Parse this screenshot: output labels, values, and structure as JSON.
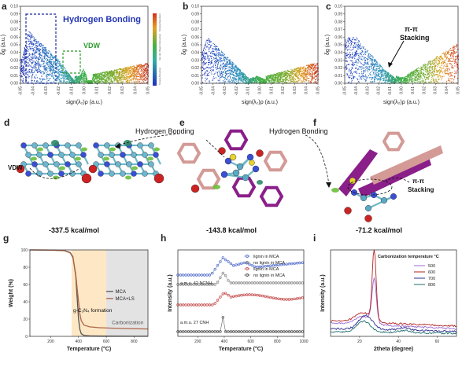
{
  "chart_data": [
    {
      "panel": "a",
      "type": "scatter",
      "ylabel": "δg (a.u.)",
      "xlabel": "sign(λ₂)ρ (a.u.)",
      "xlim": [
        -0.05,
        0.05
      ],
      "ylim": [
        0,
        0.1
      ],
      "xticks": [
        "-0.05",
        "-0.04",
        "-0.03",
        "-0.02",
        "-0.01",
        "0.00",
        "0.01",
        "0.02",
        "0.03",
        "0.04",
        "0.05"
      ],
      "yticks": [
        "0.00",
        "0.01",
        "0.02",
        "0.03",
        "0.04",
        "0.05",
        "0.06",
        "0.07",
        "0.08",
        "0.09",
        "0.10"
      ],
      "annotations": [
        "Hydrogen Bonding",
        "VDW"
      ],
      "colorbar_labels": [
        "Strong Attraction",
        "Van der Waals Interaction",
        "Strong Repulsion"
      ]
    },
    {
      "panel": "b",
      "type": "scatter",
      "ylabel": "δg (a.u.)",
      "xlabel": "sign(λ₂)ρ (a.u.)",
      "xlim": [
        -0.05,
        0.05
      ],
      "ylim": [
        0,
        0.1
      ],
      "xticks": [
        "-0.05",
        "-0.04",
        "-0.03",
        "-0.02",
        "-0.01",
        "0.00",
        "0.01",
        "0.02",
        "0.03",
        "0.04",
        "0.05"
      ],
      "yticks": [
        "0.00",
        "0.01",
        "0.02",
        "0.03",
        "0.04",
        "0.05",
        "0.06",
        "0.07",
        "0.08",
        "0.09",
        "0.10"
      ]
    },
    {
      "panel": "c",
      "type": "scatter",
      "ylabel": "δg (a.u.)",
      "xlabel": "sign(λ₂)ρ (a.u.)",
      "xlim": [
        -0.05,
        0.05
      ],
      "ylim": [
        0,
        0.1
      ],
      "xticks": [
        "-0.05",
        "-0.04",
        "-0.03",
        "-0.02",
        "-0.01",
        "0.00",
        "0.01",
        "0.02",
        "0.03",
        "0.04",
        "0.05"
      ],
      "yticks": [
        "0.00",
        "0.01",
        "0.02",
        "0.03",
        "0.04",
        "0.05",
        "0.06",
        "0.07",
        "0.08",
        "0.09",
        "0.10"
      ],
      "annotations": [
        "π-π",
        "Stacking"
      ]
    },
    {
      "panel": "g",
      "type": "line",
      "xlabel": "Temperature (°C)",
      "ylabel": "Weight (%)",
      "xlim": [
        50,
        900
      ],
      "ylim": [
        0,
        100
      ],
      "xticks": [
        "200",
        "400",
        "600",
        "800"
      ],
      "yticks": [
        "0",
        "20",
        "40",
        "60",
        "80",
        "100"
      ],
      "series": [
        {
          "name": "MCA",
          "color": "#555555",
          "x": [
            50,
            200,
            300,
            340,
            360,
            380,
            390,
            400,
            410,
            420,
            440,
            480,
            550,
            650,
            750,
            900
          ],
          "y": [
            100,
            99.8,
            99.2,
            97,
            92,
            70,
            45,
            20,
            8,
            3,
            1,
            0.5,
            0.3,
            0.2,
            0.1,
            0.1
          ]
        },
        {
          "name": "MCA+LS",
          "color": "#b0654a",
          "x": [
            50,
            200,
            300,
            340,
            360,
            380,
            395,
            410,
            420,
            440,
            480,
            550,
            650,
            750,
            900
          ],
          "y": [
            100,
            99.8,
            99,
            96.5,
            91,
            72,
            48,
            26,
            18,
            13,
            11,
            10,
            9.5,
            9,
            8.5
          ]
        }
      ],
      "regions": [
        {
          "label": "g-C₃N₄ formation",
          "from": 350,
          "to": 600,
          "color": "#fde7c5"
        },
        {
          "label": "Carbonization",
          "from": 600,
          "to": 900,
          "color": "#e3e3e3"
        }
      ]
    },
    {
      "panel": "h",
      "type": "line",
      "xlabel": "Temperature (°C)",
      "ylabel": "Intensity (a.u.)",
      "xlim": [
        50,
        1000
      ],
      "xticks": [
        "200",
        "400",
        "600",
        "800",
        "1000"
      ],
      "annotations": [
        "a.m.u. 42 NCNH₂",
        "a.m.u. 27 CNH"
      ],
      "series": [
        {
          "name": "lignin in MCA",
          "color": "#4a66c8"
        },
        {
          "name": "no lignin in MCA",
          "color": "#808080"
        },
        {
          "name": "lignin in MCA",
          "color": "#c04040"
        },
        {
          "name": "no lignin in MCA",
          "color": "#404040"
        }
      ]
    },
    {
      "panel": "i",
      "type": "line",
      "xlabel": "2theta (degree)",
      "ylabel": "Intensity (a.u.)",
      "xlim": [
        5,
        70
      ],
      "xticks": [
        "20",
        "40",
        "60"
      ],
      "legend_title": "Carbonization temperature °C",
      "series": [
        {
          "name": "500",
          "color": "#9b6bd6"
        },
        {
          "name": "600",
          "color": "#b22222"
        },
        {
          "name": "700",
          "color": "#2d2d8f"
        },
        {
          "name": "800",
          "color": "#1f6e6e"
        }
      ]
    }
  ],
  "molecular_panels": [
    {
      "panel": "d",
      "energy": "-337.5 kcal/mol",
      "labels": [
        "VDW"
      ]
    },
    {
      "panel": "e",
      "energy": "-143.8 kcal/mol",
      "labels": [
        "Hydrogen Bonding"
      ]
    },
    {
      "panel": "f",
      "energy": "-71.2 kcal/mol",
      "labels": [
        "Hydrogen Bonding",
        "π-π",
        "Stacking"
      ]
    }
  ],
  "panel_letters": [
    "a",
    "b",
    "c",
    "d",
    "e",
    "f",
    "g",
    "h",
    "i"
  ]
}
